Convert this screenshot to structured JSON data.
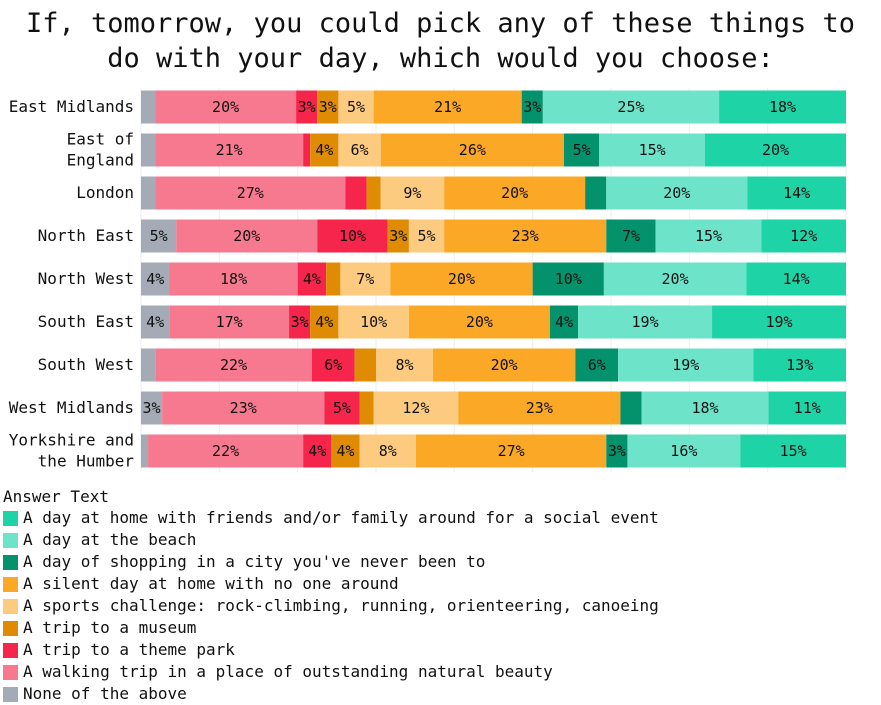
{
  "chart_data": {
    "type": "bar",
    "orientation": "horizontal-stacked-100",
    "title": "If, tomorrow, you could pick any of these things to do with your day, which would you choose:",
    "title_lines": [
      "If, tomorrow, you could pick any of these things to",
      "do with your day, which would you choose:"
    ],
    "categories": [
      [
        "East Midlands"
      ],
      [
        "East of",
        "England"
      ],
      [
        "London"
      ],
      [
        "North East"
      ],
      [
        "North West"
      ],
      [
        "South East"
      ],
      [
        "South West"
      ],
      [
        "West Midlands"
      ],
      [
        "Yorkshire and",
        "the Humber"
      ]
    ],
    "category_names": [
      "East Midlands",
      "East of England",
      "London",
      "North East",
      "North West",
      "South East",
      "South West",
      "West Midlands",
      "Yorkshire and the Humber"
    ],
    "legend_title": "Answer Text",
    "legend_placement": "bottom-left",
    "series": [
      {
        "name": "None of the above",
        "color": "#a4abb6",
        "values": [
          2,
          2,
          2,
          5,
          4,
          4,
          2,
          3,
          1
        ]
      },
      {
        "name": "A walking trip in a place of outstanding natural beauty",
        "color": "#f7798f",
        "values": [
          20,
          21,
          27,
          20,
          18,
          17,
          22,
          23,
          22
        ]
      },
      {
        "name": "A trip to a theme park",
        "color": "#f5254c",
        "values": [
          3,
          1,
          3,
          10,
          4,
          3,
          6,
          5,
          4
        ]
      },
      {
        "name": "A trip to a museum",
        "color": "#df8c04",
        "values": [
          3,
          4,
          2,
          3,
          2,
          4,
          3,
          2,
          4
        ]
      },
      {
        "name": "A sports challenge: rock-climbing, running, orienteering, canoeing",
        "color": "#fdcb80",
        "values": [
          5,
          6,
          9,
          5,
          7,
          10,
          8,
          12,
          8
        ]
      },
      {
        "name": "A silent day at home with no one around",
        "color": "#fca827",
        "values": [
          21,
          26,
          20,
          23,
          20,
          20,
          20,
          23,
          27
        ]
      },
      {
        "name": "A day of shopping in a city you've never been to",
        "color": "#03926c",
        "values": [
          3,
          5,
          3,
          7,
          10,
          4,
          6,
          3,
          3
        ]
      },
      {
        "name": "A day at the beach",
        "color": "#6de4c9",
        "values": [
          25,
          15,
          20,
          15,
          20,
          19,
          19,
          18,
          16
        ]
      },
      {
        "name": "A day at home with friends and/or family around for a social event",
        "color": "#1ed3a6",
        "values": [
          18,
          20,
          14,
          12,
          14,
          19,
          13,
          11,
          15
        ]
      }
    ],
    "show_labels": [
      [
        false,
        true,
        true,
        true,
        true,
        true,
        true,
        true,
        true
      ],
      [
        false,
        true,
        false,
        true,
        true,
        true,
        true,
        true,
        true
      ],
      [
        false,
        true,
        false,
        false,
        true,
        true,
        false,
        true,
        true
      ],
      [
        true,
        true,
        true,
        true,
        true,
        true,
        true,
        true,
        true
      ],
      [
        true,
        true,
        true,
        false,
        true,
        true,
        true,
        true,
        true
      ],
      [
        true,
        true,
        true,
        true,
        true,
        true,
        true,
        true,
        true
      ],
      [
        false,
        true,
        true,
        false,
        true,
        true,
        true,
        true,
        true
      ],
      [
        true,
        true,
        true,
        false,
        true,
        true,
        false,
        true,
        true
      ],
      [
        false,
        true,
        true,
        true,
        true,
        true,
        true,
        true,
        true
      ]
    ],
    "legend_order": [
      8,
      7,
      6,
      5,
      4,
      3,
      2,
      1,
      0
    ],
    "xlim": [
      0,
      100
    ],
    "grid": true
  }
}
